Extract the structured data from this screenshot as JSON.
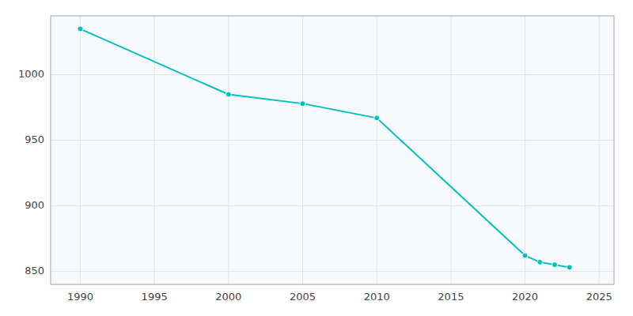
{
  "chart_data": {
    "type": "line",
    "x": [
      1990,
      2000,
      2005,
      2010,
      2020,
      2021,
      2022,
      2023
    ],
    "values": [
      1035,
      985,
      978,
      967,
      862,
      857,
      855,
      853
    ],
    "color": "#00BFBF",
    "marker": "circle",
    "xlim": [
      1988,
      2026
    ],
    "ylim": [
      840,
      1045
    ],
    "xticks": [
      1990,
      1995,
      2000,
      2005,
      2010,
      2015,
      2020,
      2025
    ],
    "yticks": [
      850,
      900,
      950,
      1000
    ],
    "grid": true
  }
}
